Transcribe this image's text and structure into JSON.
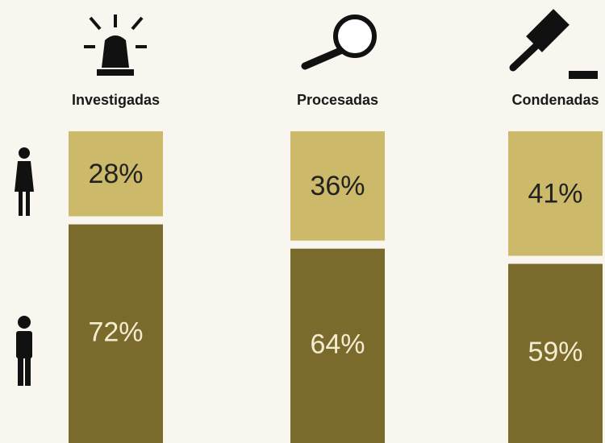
{
  "chart_data": {
    "type": "stacked_bar",
    "categories": [
      "Investigadas",
      "Procesadas",
      "Condenadas"
    ],
    "series": [
      {
        "color": "#cdb96a",
        "values": [
          28,
          36,
          41
        ],
        "value_labels": [
          "28%",
          "36%",
          "41%"
        ]
      },
      {
        "color": "#7a6a2c",
        "values": [
          72,
          64,
          59
        ],
        "value_labels": [
          "72%",
          "64%",
          "59%"
        ]
      }
    ]
  }
}
